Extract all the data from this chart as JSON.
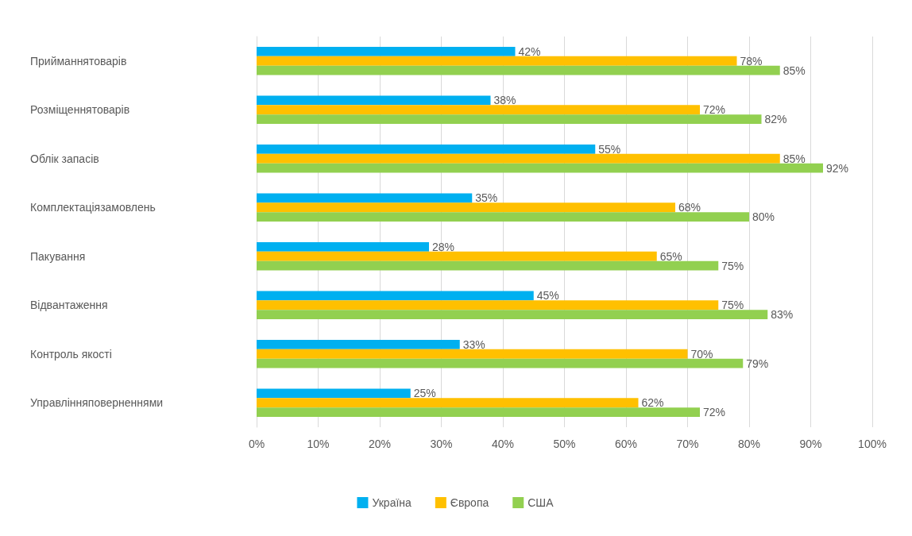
{
  "chart_data": {
    "type": "bar",
    "orientation": "horizontal",
    "categories": [
      "Прийманнятоварів",
      "Розміщеннятоварів",
      "Облік запасів",
      "Комплектаціязамовлень",
      "Пакування",
      "Відвантаження",
      "Контроль якості",
      "Управлінняповерненнями"
    ],
    "series": [
      {
        "name": "Україна",
        "color": "#00b0f0",
        "values": [
          42,
          38,
          55,
          35,
          28,
          45,
          33,
          25
        ],
        "value_labels": [
          "42%",
          "38%",
          "55%",
          "35%",
          "28%",
          "45%",
          "33%",
          "25%"
        ]
      },
      {
        "name": "Європа",
        "color": "#ffc000",
        "values": [
          78,
          72,
          85,
          68,
          65,
          75,
          70,
          62
        ],
        "value_labels": [
          "78%",
          "72%",
          "85%",
          "68%",
          "65%",
          "75%",
          "70%",
          "62%"
        ]
      },
      {
        "name": "США",
        "color": "#92d050",
        "values": [
          85,
          82,
          92,
          80,
          75,
          83,
          79,
          72
        ],
        "value_labels": [
          "85%",
          "82%",
          "92%",
          "80%",
          "75%",
          "83%",
          "79%",
          "72%"
        ]
      }
    ],
    "xlim": [
      0,
      100
    ],
    "xticks": [
      {
        "value": 0,
        "label": "0%"
      },
      {
        "value": 10,
        "label": "10%"
      },
      {
        "value": 20,
        "label": "20%"
      },
      {
        "value": 30,
        "label": "30%"
      },
      {
        "value": 40,
        "label": "40%"
      },
      {
        "value": 50,
        "label": "50%"
      },
      {
        "value": 60,
        "label": "60%"
      },
      {
        "value": 70,
        "label": "70%"
      },
      {
        "value": 80,
        "label": "80%"
      },
      {
        "value": 90,
        "label": "90%"
      },
      {
        "value": 100,
        "label": "100%"
      }
    ],
    "grid": "x",
    "legend": "bottom"
  }
}
